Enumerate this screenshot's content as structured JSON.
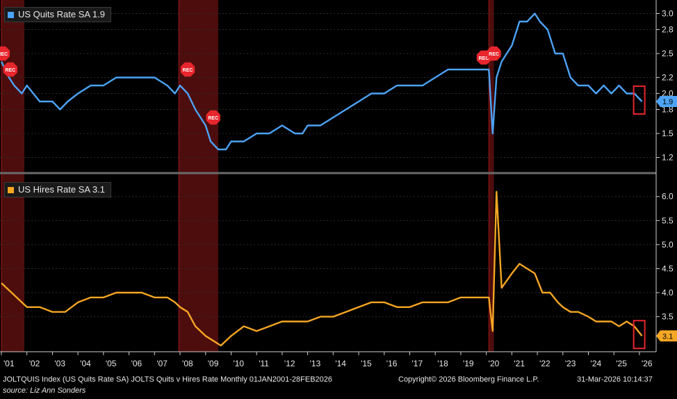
{
  "colors": {
    "quits": "#4da3f5",
    "hires": "#f5a623",
    "recession": "#5a0f0f",
    "recession_edge": "#a01818",
    "box": "#e8262d",
    "rec_badge": "#e8262d"
  },
  "panels": {
    "top": {
      "legend": "US Quits Rate SA 1.9",
      "last_label": "1.9",
      "ticks": [
        "3.0",
        "2.8",
        "2.5",
        "2.2",
        "2.0",
        "1.8",
        "1.5",
        "1.2"
      ]
    },
    "bottom": {
      "legend": "US Hires Rate SA 3.1",
      "last_label": "3.1",
      "ticks": [
        "6.0",
        "5.5",
        "5.0",
        "4.5",
        "4.0",
        "3.5"
      ]
    }
  },
  "rec_label": "REC",
  "x_ticks": [
    "'01",
    "'02",
    "'03",
    "'04",
    "'05",
    "'06",
    "'07",
    "'08",
    "'09",
    "'10",
    "'11",
    "'12",
    "'13",
    "'14",
    "'15",
    "'16",
    "'17",
    "'18",
    "'19",
    "'20",
    "'21",
    "'22",
    "'23",
    "'24",
    "'25",
    "'26"
  ],
  "footer": {
    "line1": "JOLTQUIS Index (US Quits Rate SA) JOLTS Quits v Hires Rate Monthly 01JAN2001-28FEB2026",
    "copyright": "Copyright© 2026 Bloomberg Finance L.P.",
    "timestamp": "31-Mar-2026 10:14:37",
    "source": "source: Liz Ann Sonders"
  },
  "chart_data": [
    {
      "type": "line",
      "series": [
        {
          "name": "US Quits Rate SA",
          "x": [
            2001.0,
            2001.3,
            2001.5,
            2001.8,
            2002.0,
            2002.5,
            2003.0,
            2003.3,
            2003.6,
            2004.0,
            2004.5,
            2005.0,
            2005.5,
            2006.0,
            2006.5,
            2007.0,
            2007.5,
            2007.8,
            2008.0,
            2008.3,
            2008.6,
            2009.0,
            2009.2,
            2009.5,
            2009.8,
            2010.0,
            2010.5,
            2011.0,
            2011.5,
            2012.0,
            2012.5,
            2012.8,
            2013.0,
            2013.5,
            2014.0,
            2014.5,
            2015.0,
            2015.5,
            2016.0,
            2016.5,
            2017.0,
            2017.5,
            2018.0,
            2018.5,
            2019.0,
            2019.5,
            2019.9,
            2020.1,
            2020.25,
            2020.4,
            2020.6,
            2021.0,
            2021.3,
            2021.6,
            2021.9,
            2022.1,
            2022.4,
            2022.7,
            2023.0,
            2023.3,
            2023.6,
            2024.0,
            2024.3,
            2024.6,
            2024.9,
            2025.2,
            2025.5,
            2025.8,
            2026.1
          ],
          "values": [
            2.4,
            2.2,
            2.1,
            2.0,
            2.1,
            1.9,
            1.9,
            1.8,
            1.9,
            2.0,
            2.1,
            2.1,
            2.2,
            2.2,
            2.2,
            2.2,
            2.1,
            2.0,
            2.1,
            2.0,
            1.8,
            1.6,
            1.4,
            1.3,
            1.3,
            1.4,
            1.4,
            1.5,
            1.5,
            1.6,
            1.5,
            1.5,
            1.6,
            1.6,
            1.7,
            1.8,
            1.9,
            2.0,
            2.0,
            2.1,
            2.1,
            2.1,
            2.2,
            2.3,
            2.3,
            2.3,
            2.3,
            2.3,
            1.5,
            2.2,
            2.4,
            2.6,
            2.9,
            2.9,
            3.0,
            2.9,
            2.8,
            2.5,
            2.5,
            2.2,
            2.1,
            2.1,
            2.0,
            2.1,
            2.0,
            2.1,
            2.0,
            2.0,
            1.9
          ]
        }
      ],
      "title": "",
      "ylim": [
        1.1,
        3.1
      ]
    },
    {
      "type": "line",
      "series": [
        {
          "name": "US Hires Rate SA",
          "x": [
            2001.0,
            2001.4,
            2001.8,
            2002.0,
            2002.5,
            2003.0,
            2003.5,
            2004.0,
            2004.5,
            2005.0,
            2005.5,
            2006.0,
            2006.5,
            2007.0,
            2007.5,
            2007.8,
            2008.0,
            2008.3,
            2008.6,
            2009.0,
            2009.3,
            2009.6,
            2010.0,
            2010.5,
            2011.0,
            2011.5,
            2012.0,
            2012.5,
            2013.0,
            2013.5,
            2014.0,
            2014.5,
            2015.0,
            2015.5,
            2016.0,
            2016.5,
            2017.0,
            2017.5,
            2018.0,
            2018.5,
            2019.0,
            2019.5,
            2019.9,
            2020.1,
            2020.25,
            2020.4,
            2020.6,
            2021.0,
            2021.3,
            2021.6,
            2021.9,
            2022.2,
            2022.5,
            2022.8,
            2023.0,
            2023.3,
            2023.6,
            2024.0,
            2024.3,
            2024.6,
            2024.9,
            2025.2,
            2025.5,
            2025.8,
            2026.1
          ],
          "values": [
            4.2,
            4.0,
            3.8,
            3.7,
            3.7,
            3.6,
            3.6,
            3.8,
            3.9,
            3.9,
            4.0,
            4.0,
            4.0,
            3.9,
            3.9,
            3.8,
            3.7,
            3.6,
            3.3,
            3.1,
            3.0,
            2.9,
            3.1,
            3.3,
            3.2,
            3.3,
            3.4,
            3.4,
            3.4,
            3.5,
            3.5,
            3.6,
            3.7,
            3.8,
            3.8,
            3.7,
            3.7,
            3.8,
            3.8,
            3.8,
            3.9,
            3.9,
            3.9,
            3.9,
            3.2,
            6.1,
            4.1,
            4.4,
            4.6,
            4.5,
            4.4,
            4.0,
            4.0,
            3.8,
            3.7,
            3.6,
            3.6,
            3.5,
            3.4,
            3.4,
            3.4,
            3.3,
            3.4,
            3.3,
            3.1
          ]
        }
      ],
      "title": "",
      "ylim": [
        2.8,
        6.3
      ]
    }
  ]
}
